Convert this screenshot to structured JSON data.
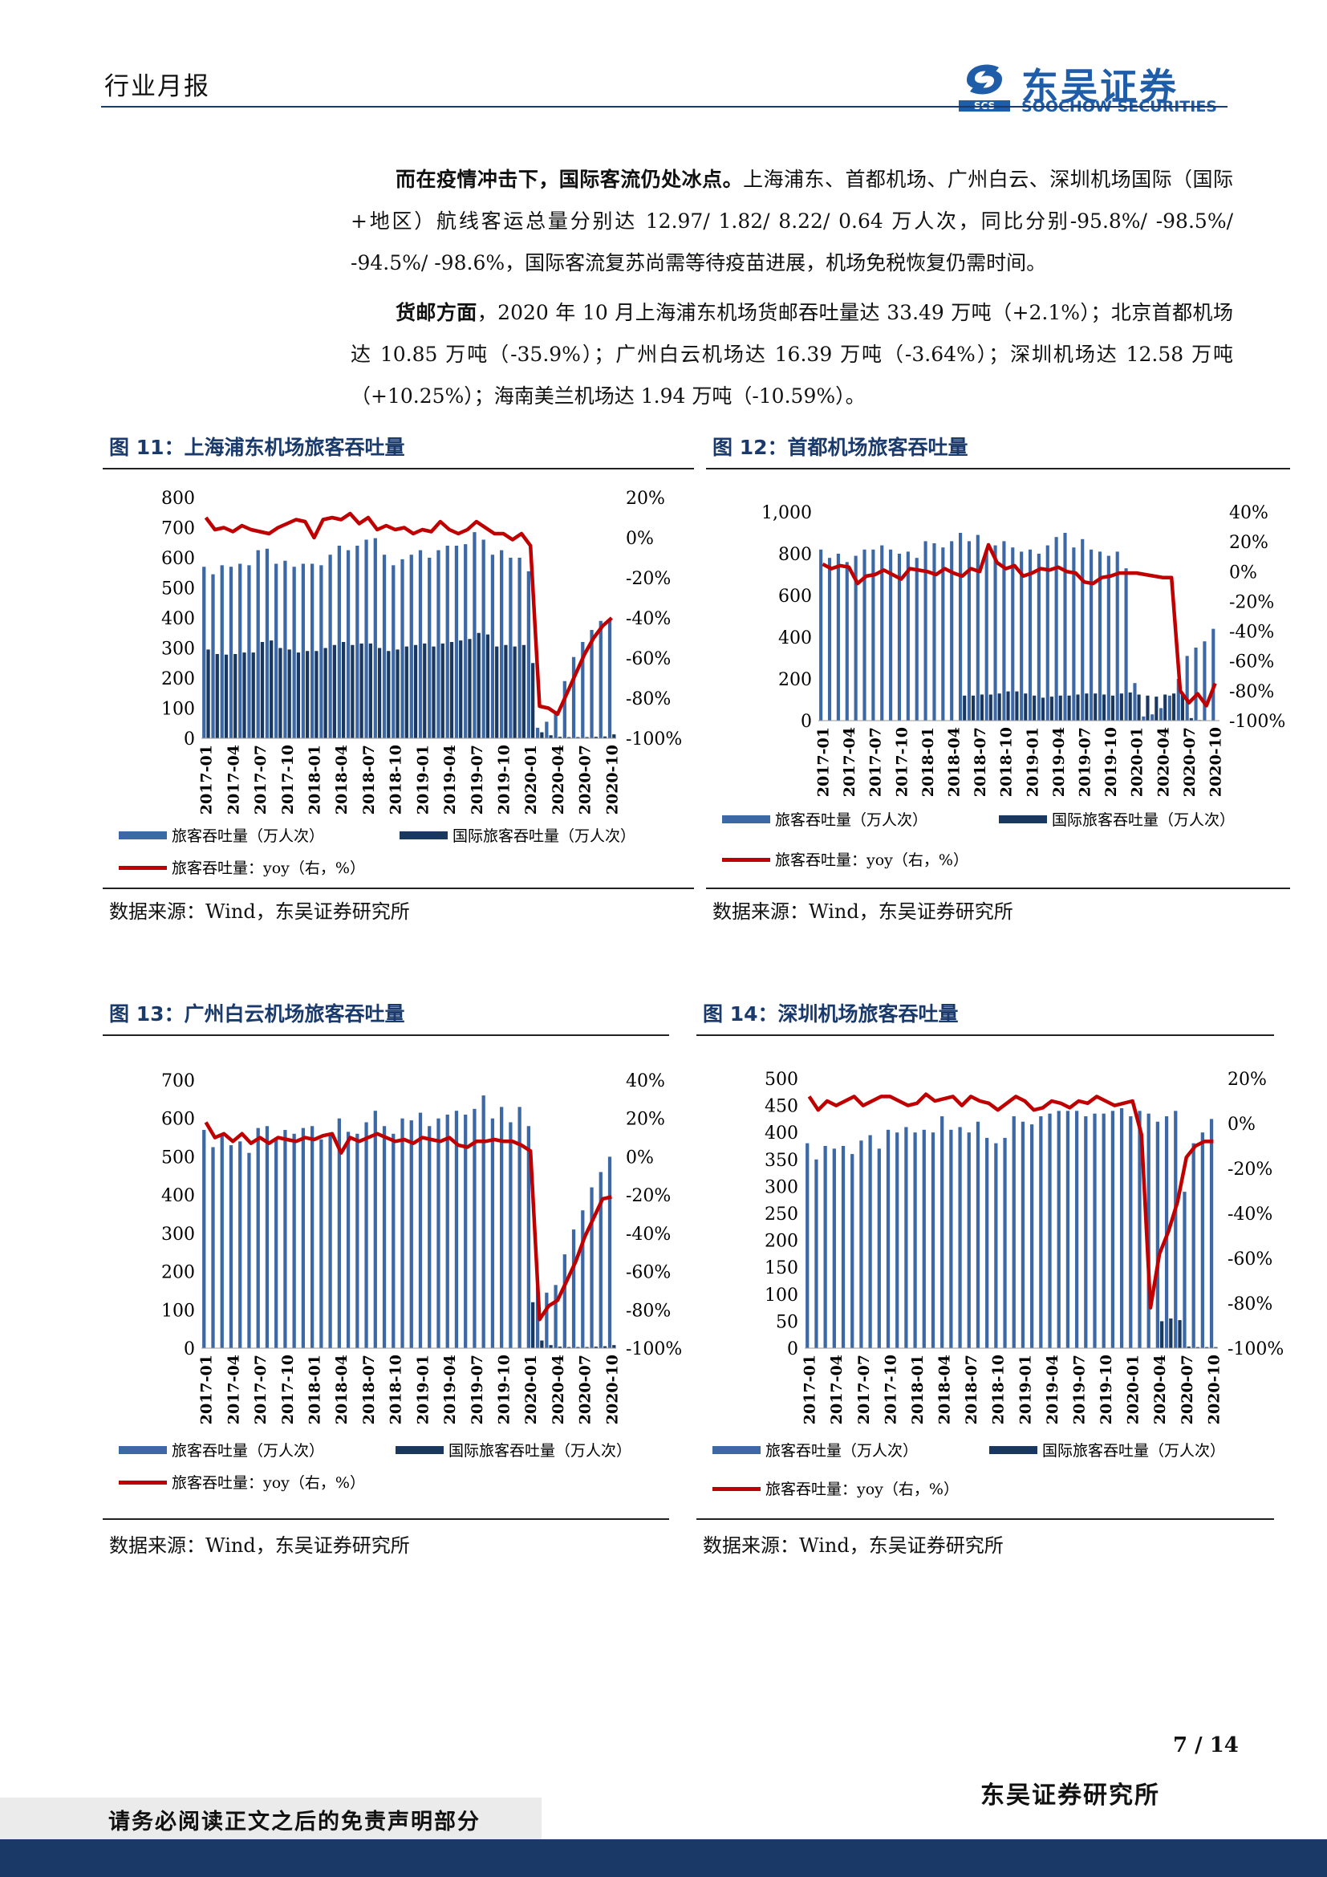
{
  "header": {
    "title": "行业月报",
    "logo_cn": "东吴证券",
    "logo_en": "SOOCHOW SECURITIES",
    "logo_abbr": "SCS"
  },
  "body": {
    "p1_bold": "而在疫情冲击下，国际客流仍处冰点。",
    "p1_text": "上海浦东、首都机场、广州白云、深圳机场国际（国际+地区）航线客运总量分别达 12.97/ 1.82/ 8.22/ 0.64 万人次，同比分别-95.8%/ -98.5%/ -94.5%/ -98.6%，国际客流复苏尚需等待疫苗进展，机场免税恢复仍需时间。",
    "p2_bold": "货邮方面",
    "p2_text": "，2020 年 10 月上海浦东机场货邮吞吐量达 33.49 万吨（+2.1%）；北京首都机场达 10.85 万吨（-35.9%）；广州白云机场达 16.39 万吨（-3.64%）；深圳机场达 12.58 万吨（+10.25%）；海南美兰机场达 1.94 万吨（-10.59%）。"
  },
  "legend": {
    "pax": "旅客吞吐量（万人次）",
    "intl": "国际旅客吞吐量（万人次）",
    "yoy": "旅客吞吐量：yoy（右，%）"
  },
  "source": "数据来源：Wind，东吴证券研究所",
  "footer": {
    "page": "7 / 14",
    "org": "东吴证券研究所",
    "notice": "请务必阅读正文之后的免责声明部分"
  },
  "colors": {
    "pax": "#3c69a6",
    "intl": "#1a3760",
    "yoy": "#c00000",
    "navy": "#1b3967"
  },
  "chart_data": [
    {
      "type": "bar",
      "figure": "图 11：上海浦东机场旅客吞吐量",
      "x_start": "2017-01",
      "x_end": "2020-10",
      "x_ticks": [
        "2017-01",
        "2017-04",
        "2017-07",
        "2017-10",
        "2018-01",
        "2018-04",
        "2018-07",
        "2018-10",
        "2019-01",
        "2019-04",
        "2019-07",
        "2019-10",
        "2020-01",
        "2020-04",
        "2020-07",
        "2020-10"
      ],
      "ylim_left": [
        0,
        800
      ],
      "yticks_left": [
        "0",
        "100",
        "200",
        "300",
        "400",
        "500",
        "600",
        "700",
        "800"
      ],
      "ylim_right": [
        -100,
        20
      ],
      "yticks_right": [
        "-100%",
        "-80%",
        "-60%",
        "-40%",
        "-20%",
        "0%",
        "20%"
      ],
      "series": [
        {
          "name": "旅客吞吐量（万人次）",
          "axis": "left",
          "values": [
            570,
            545,
            575,
            570,
            580,
            575,
            625,
            630,
            580,
            590,
            570,
            580,
            580,
            575,
            610,
            640,
            625,
            640,
            660,
            665,
            610,
            575,
            595,
            610,
            625,
            600,
            625,
            640,
            640,
            645,
            685,
            660,
            610,
            625,
            600,
            600,
            555,
            35,
            55,
            90,
            190,
            270,
            320,
            360,
            390,
            395
          ]
        },
        {
          "name": "国际旅客吞吐量（万人次）",
          "axis": "left",
          "values": [
            295,
            280,
            278,
            280,
            285,
            285,
            320,
            325,
            300,
            295,
            285,
            290,
            290,
            300,
            310,
            320,
            310,
            315,
            315,
            300,
            290,
            295,
            305,
            310,
            315,
            305,
            315,
            320,
            325,
            330,
            350,
            345,
            305,
            310,
            305,
            310,
            250,
            20,
            10,
            5,
            4,
            4,
            4,
            5,
            6,
            13
          ]
        },
        {
          "name": "旅客吞吐量：yoy（右，%）",
          "axis": "right",
          "values": [
            10,
            4,
            5,
            3,
            6,
            4,
            3,
            2,
            5,
            7,
            9,
            8,
            0,
            9,
            10,
            9,
            12,
            7,
            10,
            4,
            6,
            4,
            5,
            2,
            4,
            3,
            8,
            4,
            2,
            4,
            8,
            5,
            2,
            2,
            -1,
            2,
            -4,
            -84,
            -85,
            -88,
            -78,
            -68,
            -58,
            -50,
            -44,
            -40
          ]
        }
      ]
    },
    {
      "type": "bar",
      "figure": "图 12：首都机场旅客吞吐量",
      "x_start": "2017-01",
      "x_end": "2020-10",
      "x_ticks": [
        "2017-01",
        "2017-04",
        "2017-07",
        "2017-10",
        "2018-01",
        "2018-04",
        "2018-07",
        "2018-10",
        "2019-01",
        "2019-04",
        "2019-07",
        "2019-10",
        "2020-01",
        "2020-04",
        "2020-07",
        "2020-10"
      ],
      "ylim_left": [
        0,
        1000
      ],
      "yticks_left": [
        "0",
        "200",
        "400",
        "600",
        "800",
        "1,000"
      ],
      "ylim_right": [
        -100,
        40
      ],
      "yticks_right": [
        "-100%",
        "-80%",
        "-60%",
        "-40%",
        "-20%",
        "0%",
        "20%",
        "40%"
      ],
      "series": [
        {
          "name": "旅客吞吐量（万人次）",
          "axis": "left",
          "values": [
            820,
            780,
            800,
            760,
            790,
            820,
            820,
            840,
            820,
            800,
            810,
            780,
            860,
            850,
            830,
            860,
            900,
            860,
            890,
            820,
            840,
            860,
            830,
            810,
            820,
            800,
            840,
            880,
            900,
            830,
            870,
            820,
            810,
            790,
            810,
            730,
            180,
            20,
            30,
            60,
            120,
            200,
            310,
            350,
            380,
            440
          ]
        },
        {
          "name": "国际旅客吞吐量（万人次）",
          "axis": "left",
          "values": [
            0,
            0,
            0,
            0,
            0,
            0,
            0,
            0,
            0,
            0,
            0,
            0,
            0,
            0,
            0,
            0,
            120,
            120,
            125,
            125,
            130,
            140,
            140,
            130,
            120,
            110,
            115,
            120,
            120,
            125,
            130,
            130,
            125,
            120,
            130,
            135,
            125,
            120,
            115,
            125,
            130,
            125,
            12,
            3,
            2,
            2
          ]
        },
        {
          "name": "旅客吞吐量：yoy（右，%）",
          "axis": "right",
          "values": [
            5,
            2,
            4,
            3,
            -8,
            -3,
            -2,
            1,
            -2,
            -5,
            2,
            1,
            0,
            -2,
            2,
            -1,
            -3,
            2,
            0,
            18,
            6,
            2,
            4,
            -3,
            -1,
            2,
            1,
            3,
            0,
            -1,
            -7,
            -8,
            -4,
            -3,
            -1,
            -1,
            -1,
            -2,
            -3,
            -4,
            -4,
            -80,
            -88,
            -82,
            -90,
            -75
          ]
        }
      ]
    },
    {
      "type": "bar",
      "figure": "图 13：广州白云机场旅客吞吐量",
      "x_start": "2017-01",
      "x_end": "2020-10",
      "x_ticks": [
        "2017-01",
        "2017-04",
        "2017-07",
        "2017-10",
        "2018-01",
        "2018-04",
        "2018-07",
        "2018-10",
        "2019-01",
        "2019-04",
        "2019-07",
        "2019-10",
        "2020-01",
        "2020-04",
        "2020-07",
        "2020-10"
      ],
      "ylim_left": [
        0,
        700
      ],
      "yticks_left": [
        "0",
        "100",
        "200",
        "300",
        "400",
        "500",
        "600",
        "700"
      ],
      "ylim_right": [
        -100,
        40
      ],
      "yticks_right": [
        "-100%",
        "-80%",
        "-60%",
        "-40%",
        "-20%",
        "0%",
        "20%",
        "40%"
      ],
      "series": [
        {
          "name": "旅客吞吐量（万人次）",
          "axis": "left",
          "values": [
            570,
            525,
            555,
            530,
            540,
            510,
            575,
            580,
            550,
            570,
            560,
            575,
            580,
            545,
            560,
            600,
            565,
            560,
            590,
            620,
            580,
            560,
            600,
            595,
            615,
            580,
            600,
            610,
            620,
            610,
            625,
            660,
            600,
            630,
            590,
            630,
            580,
            160,
            145,
            165,
            245,
            310,
            360,
            420,
            460,
            500
          ]
        },
        {
          "name": "国际旅客吞吐量（万人次）",
          "axis": "left",
          "values": [
            0,
            0,
            0,
            0,
            0,
            0,
            0,
            0,
            0,
            0,
            0,
            0,
            0,
            0,
            0,
            0,
            0,
            0,
            0,
            0,
            0,
            0,
            0,
            0,
            0,
            0,
            0,
            0,
            0,
            0,
            0,
            0,
            0,
            0,
            0,
            0,
            120,
            20,
            8,
            4,
            3,
            3,
            3,
            4,
            5,
            8
          ]
        },
        {
          "name": "旅客吞吐量：yoy（右，%）",
          "axis": "right",
          "values": [
            18,
            10,
            12,
            8,
            12,
            7,
            10,
            7,
            10,
            9,
            8,
            10,
            9,
            11,
            12,
            2,
            10,
            8,
            10,
            12,
            10,
            8,
            9,
            7,
            10,
            9,
            8,
            10,
            6,
            5,
            8,
            8,
            9,
            8,
            8,
            6,
            3,
            -85,
            -78,
            -75,
            -65,
            -55,
            -42,
            -32,
            -22,
            -21
          ]
        }
      ]
    },
    {
      "type": "bar",
      "figure": "图 14：深圳机场旅客吞吐量",
      "x_start": "2017-01",
      "x_end": "2020-10",
      "x_ticks": [
        "2017-01",
        "2017-04",
        "2017-07",
        "2017-10",
        "2018-01",
        "2018-04",
        "2018-07",
        "2018-10",
        "2019-01",
        "2019-04",
        "2019-07",
        "2019-10",
        "2020-01",
        "2020-04",
        "2020-07",
        "2020-10"
      ],
      "ylim_left": [
        0,
        500
      ],
      "yticks_left": [
        "0",
        "50",
        "100",
        "150",
        "200",
        "250",
        "300",
        "350",
        "400",
        "450",
        "500"
      ],
      "ylim_right": [
        -100,
        20
      ],
      "yticks_right": [
        "-100%",
        "-80%",
        "-60%",
        "-40%",
        "-20%",
        "0%",
        "20%"
      ],
      "series": [
        {
          "name": "旅客吞吐量（万人次）",
          "axis": "left",
          "values": [
            380,
            350,
            375,
            370,
            375,
            360,
            385,
            395,
            370,
            405,
            400,
            410,
            400,
            405,
            400,
            430,
            405,
            410,
            400,
            420,
            390,
            380,
            390,
            430,
            420,
            415,
            430,
            435,
            440,
            440,
            440,
            430,
            435,
            435,
            440,
            445,
            430,
            440,
            435,
            420,
            430,
            440,
            290,
            380,
            400,
            425
          ]
        },
        {
          "name": "国际旅客吞吐量（万人次）",
          "axis": "left",
          "values": [
            0,
            0,
            0,
            0,
            0,
            0,
            0,
            0,
            0,
            0,
            0,
            0,
            0,
            0,
            0,
            0,
            0,
            0,
            0,
            0,
            0,
            0,
            0,
            0,
            0,
            0,
            0,
            0,
            0,
            0,
            0,
            0,
            0,
            0,
            0,
            0,
            0,
            0,
            0,
            50,
            55,
            52,
            3,
            2,
            2,
            2
          ]
        },
        {
          "name": "旅客吞吐量：yoy（右，%）",
          "axis": "right",
          "values": [
            12,
            6,
            10,
            8,
            10,
            12,
            8,
            10,
            12,
            12,
            10,
            8,
            9,
            13,
            10,
            11,
            12,
            8,
            12,
            10,
            9,
            6,
            9,
            12,
            10,
            6,
            7,
            10,
            9,
            7,
            10,
            9,
            12,
            10,
            8,
            9,
            10,
            -5,
            -82,
            -58,
            -48,
            -35,
            -15,
            -10,
            -8,
            -8
          ]
        }
      ]
    }
  ]
}
